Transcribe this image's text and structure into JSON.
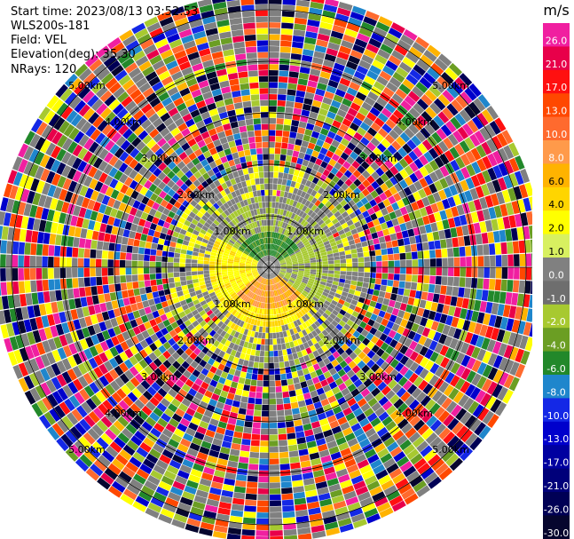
{
  "header": {
    "start_time": "Start time: 2023/08/13 03:52:53",
    "station": "WLS200s-181",
    "field": "Field: VEL",
    "elevation": "Elevation(deg): 35.30",
    "nrays": "NRays: 120"
  },
  "chart_data": {
    "type": "heatmap",
    "projection": "polar-ppi",
    "nrays": 120,
    "range_ring_labels": [
      "1.00km",
      "2.00km",
      "3.00km",
      "4.00km",
      "5.00km"
    ],
    "colorbar": {
      "unit": "m/s",
      "ticks": [
        "26.0",
        "21.0",
        "17.0",
        "13.0",
        "10.0",
        "8.0",
        "6.0",
        "4.0",
        "2.0",
        "1.0",
        "0.0",
        "-1.0",
        "-2.0",
        "-4.0",
        "-6.0",
        "-8.0",
        "-10.0",
        "-13.0",
        "-17.0",
        "-21.0",
        "-26.0",
        "-30.0"
      ],
      "colors": [
        "#f01fa0",
        "#e8004a",
        "#ff1010",
        "#ff4800",
        "#ff6a2e",
        "#ff9a4a",
        "#ffb300",
        "#ffd500",
        "#ffff00",
        "#d8f060",
        "#808080",
        "#6e6e6e",
        "#a7c930",
        "#6b9e23",
        "#22882a",
        "#1f86cc",
        "#1428e6",
        "#0000cc",
        "#0000a0",
        "#00007a",
        "#000055",
        "#06062e"
      ]
    }
  }
}
